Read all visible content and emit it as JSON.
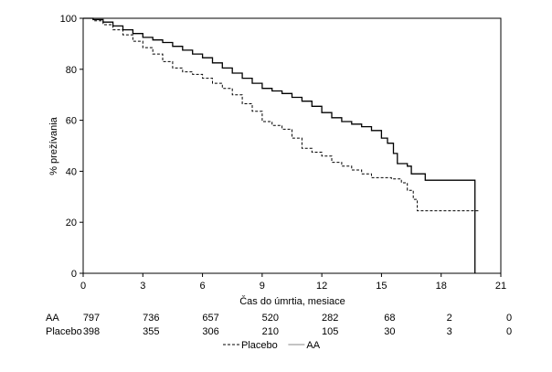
{
  "chart_data": {
    "type": "line",
    "title": "",
    "xlabel": "Čas do úmrtia, mesiace",
    "ylabel": "% prežívania",
    "xlim": [
      0,
      21
    ],
    "ylim": [
      0,
      100
    ],
    "x_ticks": [
      "0",
      "3",
      "6",
      "9",
      "12",
      "15",
      "18",
      "21"
    ],
    "y_ticks": [
      "0",
      "20",
      "40",
      "60",
      "80",
      "100"
    ],
    "grid": false,
    "legend_position": "bottom",
    "series": [
      {
        "name": "AA",
        "style": "solid",
        "color": "#000000",
        "points": [
          [
            0,
            100
          ],
          [
            0.5,
            99.5
          ],
          [
            1,
            98.5
          ],
          [
            1.5,
            97
          ],
          [
            2,
            95.5
          ],
          [
            2.5,
            94
          ],
          [
            3,
            92.5
          ],
          [
            3.5,
            91.5
          ],
          [
            4,
            90.5
          ],
          [
            4.5,
            89
          ],
          [
            5,
            87.5
          ],
          [
            5.5,
            86
          ],
          [
            6,
            84.5
          ],
          [
            6.5,
            82.5
          ],
          [
            7,
            80.5
          ],
          [
            7.5,
            78.5
          ],
          [
            8,
            76.5
          ],
          [
            8.5,
            74.5
          ],
          [
            9,
            72.5
          ],
          [
            9.5,
            71.5
          ],
          [
            10,
            70.5
          ],
          [
            10.5,
            69
          ],
          [
            11,
            67.5
          ],
          [
            11.5,
            65.5
          ],
          [
            12,
            63
          ],
          [
            12.5,
            61
          ],
          [
            13,
            59.5
          ],
          [
            13.5,
            58.5
          ],
          [
            14,
            57.5
          ],
          [
            14.5,
            56
          ],
          [
            15,
            53
          ],
          [
            15.3,
            51
          ],
          [
            15.6,
            47
          ],
          [
            15.8,
            43
          ],
          [
            16.3,
            42
          ],
          [
            16.5,
            39
          ],
          [
            17,
            39
          ],
          [
            17.2,
            36.5
          ],
          [
            19.7,
            36.5
          ],
          [
            19.7,
            0
          ]
        ]
      },
      {
        "name": "Placebo",
        "style": "dashed",
        "color": "#000000",
        "points": [
          [
            0,
            100
          ],
          [
            0.5,
            99
          ],
          [
            1,
            97.5
          ],
          [
            1.5,
            95.5
          ],
          [
            2,
            93.5
          ],
          [
            2.5,
            91
          ],
          [
            3,
            88.5
          ],
          [
            3.5,
            86
          ],
          [
            4,
            83
          ],
          [
            4.5,
            80.5
          ],
          [
            5,
            79
          ],
          [
            5.5,
            78
          ],
          [
            6,
            76.5
          ],
          [
            6.5,
            74.5
          ],
          [
            7,
            72.5
          ],
          [
            7.5,
            70
          ],
          [
            8,
            66.5
          ],
          [
            8.5,
            63.5
          ],
          [
            9,
            59.5
          ],
          [
            9.5,
            58
          ],
          [
            10,
            56.5
          ],
          [
            10.5,
            53
          ],
          [
            11,
            49
          ],
          [
            11.5,
            47.5
          ],
          [
            12,
            46
          ],
          [
            12.5,
            43.5
          ],
          [
            13,
            42
          ],
          [
            13.5,
            40.5
          ],
          [
            14,
            39
          ],
          [
            14.5,
            37.5
          ],
          [
            15,
            37.5
          ],
          [
            15.5,
            37
          ],
          [
            16,
            35.5
          ],
          [
            16.3,
            32.5
          ],
          [
            16.6,
            29
          ],
          [
            16.8,
            24.5
          ],
          [
            19.9,
            24.5
          ]
        ]
      }
    ],
    "risk_table": {
      "rows": [
        {
          "label": "AA",
          "values": [
            "797",
            "736",
            "657",
            "520",
            "282",
            "68",
            "2",
            "0"
          ]
        },
        {
          "label": "Placebo",
          "values": [
            "398",
            "355",
            "306",
            "210",
            "105",
            "30",
            "3",
            "0"
          ]
        }
      ]
    }
  }
}
